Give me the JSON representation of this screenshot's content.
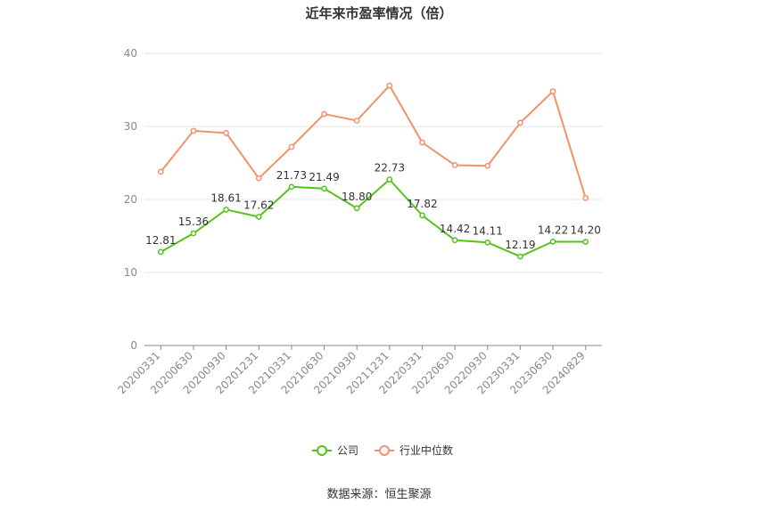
{
  "chart_data": {
    "type": "line",
    "title": "近年来市盈率情况（倍）",
    "categories": [
      "20200331",
      "20200630",
      "20200930",
      "20201231",
      "20210331",
      "20210630",
      "20210930",
      "20211231",
      "20220331",
      "20220630",
      "20220930",
      "20230331",
      "20230630",
      "20240829"
    ],
    "series": [
      {
        "name": "公司",
        "color": "#52c41a",
        "values": [
          12.81,
          15.36,
          18.61,
          17.62,
          21.73,
          21.49,
          18.8,
          22.73,
          17.82,
          14.42,
          14.11,
          12.19,
          14.22,
          14.2
        ],
        "data_labels": [
          "12.81",
          "15.36",
          "18.61",
          "17.62",
          "21.73",
          "21.49",
          "18.80",
          "22.73",
          "17.82",
          "14.42",
          "14.11",
          "12.19",
          "14.22",
          "14.20"
        ]
      },
      {
        "name": "行业中位数",
        "color": "#f0926a",
        "values": [
          23.8,
          29.4,
          29.1,
          22.9,
          27.2,
          31.7,
          30.8,
          35.6,
          27.8,
          24.7,
          24.6,
          30.5,
          34.8,
          20.2
        ]
      }
    ],
    "y_ticks": [
      "0",
      "10",
      "20",
      "30",
      "40"
    ],
    "ylim": [
      0,
      40
    ],
    "grid": true,
    "legend_position": "bottom"
  },
  "source_text": "数据来源：恒生聚源"
}
